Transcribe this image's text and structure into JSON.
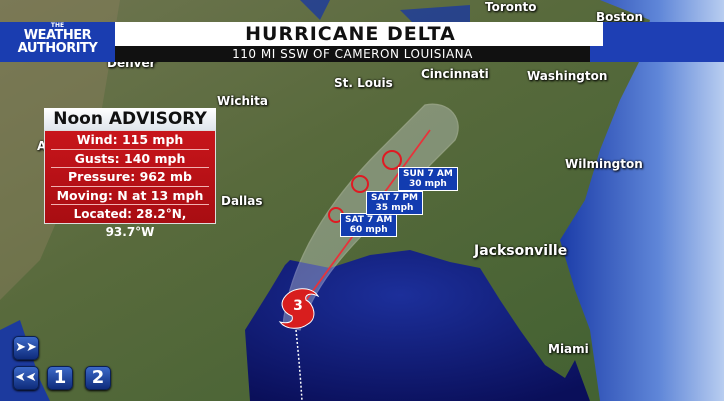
{
  "header": {
    "logo_text": "THE WEATHER AUTHORITY",
    "title": "HURRICANE DELTA",
    "subtitle": "110 MI SSW OF CAMERON LOUISIANA"
  },
  "advisory": {
    "heading": "Noon ADVISORY",
    "rows": [
      "Wind: 115 mph",
      "Gusts: 140 mph",
      "Pressure:  962 mb",
      "Moving: N at 13 mph",
      "Located: 28.2°N, 93.7°W"
    ]
  },
  "storm": {
    "category": "3",
    "color": "#d81e1e"
  },
  "forecast_points": [
    {
      "time": "SAT 7 AM",
      "wind": "60 mph"
    },
    {
      "time": "SAT 7 PM",
      "wind": "35 mph"
    },
    {
      "time": "SUN 7 AM",
      "wind": "30 mph"
    }
  ],
  "cities": {
    "toronto": "Toronto",
    "boston": "Boston",
    "denver": "Denver",
    "st_louis": "St. Louis",
    "cincinnati": "Cincinnati",
    "washington": "Washington",
    "wichita": "Wichita",
    "wilmington": "Wilmington",
    "dallas": "Dallas",
    "jacksonville": "Jacksonville",
    "miami": "Miami",
    "albuquerque_partial": "A"
  },
  "controls": {
    "forward_icon": "fast-forward-icon",
    "rewind_icon": "rewind-icon",
    "button_1": "1",
    "button_2": "2"
  }
}
